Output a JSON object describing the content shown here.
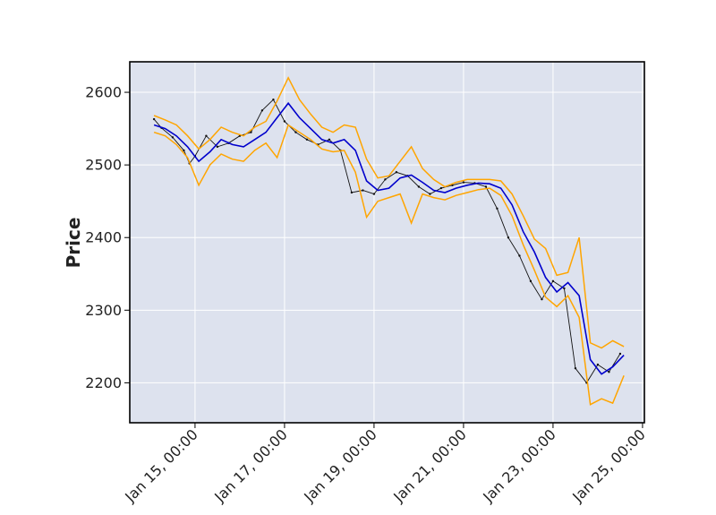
{
  "chart_data": {
    "type": "line",
    "title": "",
    "xlabel": "",
    "ylabel": "Price",
    "y_ticks": [
      2200,
      2300,
      2400,
      2500,
      2600
    ],
    "y_tick_labels": [
      "2200",
      "2300",
      "2400",
      "2500",
      "2600"
    ],
    "ylim": [
      2145,
      2642
    ],
    "x_ticks": [
      "2024-01-15 00:00",
      "2024-01-17 00:00",
      "2024-01-19 00:00",
      "2024-01-21 00:00",
      "2024-01-23 00:00",
      "2024-01-25 00:00"
    ],
    "x_tick_labels": [
      "Jan 15, 00:00",
      "Jan 17, 00:00",
      "Jan 19, 00:00",
      "Jan 21, 00:00",
      "Jan 23, 00:00",
      "Jan 25, 00:00"
    ],
    "xlim": [
      "2024-01-13 13:00",
      "2024-01-25 01:00"
    ],
    "grid": true,
    "legend": "none",
    "colors": {
      "background": "#dde2ee",
      "grid": "#ffffff",
      "price": "#111111",
      "moving_average": "#0000cc",
      "bands": "#ffa500"
    },
    "series": [
      {
        "role": "price",
        "x": [
          "2024-01-14 02:00",
          "2024-01-14 06:00",
          "2024-01-14 12:00",
          "2024-01-14 18:00",
          "2024-01-14 21:00",
          "2024-01-15 00:00",
          "2024-01-15 06:00",
          "2024-01-15 12:00",
          "2024-01-15 18:00",
          "2024-01-16 00:00",
          "2024-01-16 06:00",
          "2024-01-16 12:00",
          "2024-01-16 18:00",
          "2024-01-17 00:00",
          "2024-01-17 06:00",
          "2024-01-17 12:00",
          "2024-01-17 18:00",
          "2024-01-18 00:00",
          "2024-01-18 06:00",
          "2024-01-18 12:00",
          "2024-01-18 18:00",
          "2024-01-19 00:00",
          "2024-01-19 06:00",
          "2024-01-19 12:00",
          "2024-01-19 18:00",
          "2024-01-20 00:00",
          "2024-01-20 06:00",
          "2024-01-20 12:00",
          "2024-01-20 18:00",
          "2024-01-21 00:00",
          "2024-01-21 06:00",
          "2024-01-21 12:00",
          "2024-01-21 18:00",
          "2024-01-22 00:00",
          "2024-01-22 06:00",
          "2024-01-22 12:00",
          "2024-01-22 18:00",
          "2024-01-23 00:00",
          "2024-01-23 06:00",
          "2024-01-23 12:00",
          "2024-01-23 18:00",
          "2024-01-24 00:00",
          "2024-01-24 06:00",
          "2024-01-24 12:00"
        ],
        "y": [
          2563,
          2551,
          2538,
          2520,
          2502,
          2512,
          2540,
          2525,
          2530,
          2540,
          2545,
          2575,
          2590,
          2560,
          2545,
          2535,
          2528,
          2535,
          2520,
          2462,
          2465,
          2460,
          2480,
          2490,
          2485,
          2470,
          2460,
          2468,
          2472,
          2476,
          2475,
          2470,
          2440,
          2400,
          2375,
          2340,
          2315,
          2340,
          2330,
          2220,
          2200,
          2225,
          2215,
          2240
        ]
      },
      {
        "role": "moving_average",
        "x": [
          "2024-01-14 02:00",
          "2024-01-14 08:00",
          "2024-01-14 14:00",
          "2024-01-14 20:00",
          "2024-01-15 02:00",
          "2024-01-15 08:00",
          "2024-01-15 14:00",
          "2024-01-15 20:00",
          "2024-01-16 02:00",
          "2024-01-16 08:00",
          "2024-01-16 14:00",
          "2024-01-16 20:00",
          "2024-01-17 02:00",
          "2024-01-17 08:00",
          "2024-01-17 14:00",
          "2024-01-17 20:00",
          "2024-01-18 02:00",
          "2024-01-18 08:00",
          "2024-01-18 14:00",
          "2024-01-18 20:00",
          "2024-01-19 02:00",
          "2024-01-19 08:00",
          "2024-01-19 14:00",
          "2024-01-19 20:00",
          "2024-01-20 02:00",
          "2024-01-20 08:00",
          "2024-01-20 14:00",
          "2024-01-20 20:00",
          "2024-01-21 02:00",
          "2024-01-21 08:00",
          "2024-01-21 14:00",
          "2024-01-21 20:00",
          "2024-01-22 02:00",
          "2024-01-22 08:00",
          "2024-01-22 14:00",
          "2024-01-22 20:00",
          "2024-01-23 02:00",
          "2024-01-23 08:00",
          "2024-01-23 14:00",
          "2024-01-23 20:00",
          "2024-01-24 02:00",
          "2024-01-24 08:00",
          "2024-01-24 14:00"
        ],
        "y": [
          2555,
          2550,
          2540,
          2525,
          2505,
          2518,
          2535,
          2528,
          2525,
          2535,
          2545,
          2565,
          2585,
          2565,
          2550,
          2535,
          2530,
          2535,
          2520,
          2478,
          2465,
          2468,
          2482,
          2486,
          2476,
          2465,
          2462,
          2468,
          2472,
          2475,
          2474,
          2468,
          2445,
          2408,
          2380,
          2345,
          2325,
          2338,
          2320,
          2232,
          2212,
          2222,
          2238
        ]
      },
      {
        "role": "upper_band",
        "x": [
          "2024-01-14 02:00",
          "2024-01-14 08:00",
          "2024-01-14 14:00",
          "2024-01-14 20:00",
          "2024-01-15 02:00",
          "2024-01-15 08:00",
          "2024-01-15 14:00",
          "2024-01-15 20:00",
          "2024-01-16 02:00",
          "2024-01-16 08:00",
          "2024-01-16 14:00",
          "2024-01-16 20:00",
          "2024-01-17 02:00",
          "2024-01-17 08:00",
          "2024-01-17 14:00",
          "2024-01-17 20:00",
          "2024-01-18 02:00",
          "2024-01-18 08:00",
          "2024-01-18 14:00",
          "2024-01-18 20:00",
          "2024-01-19 02:00",
          "2024-01-19 08:00",
          "2024-01-19 14:00",
          "2024-01-19 20:00",
          "2024-01-20 02:00",
          "2024-01-20 08:00",
          "2024-01-20 14:00",
          "2024-01-20 20:00",
          "2024-01-21 02:00",
          "2024-01-21 08:00",
          "2024-01-21 14:00",
          "2024-01-21 20:00",
          "2024-01-22 02:00",
          "2024-01-22 08:00",
          "2024-01-22 14:00",
          "2024-01-22 20:00",
          "2024-01-23 02:00",
          "2024-01-23 08:00",
          "2024-01-23 14:00",
          "2024-01-23 20:00",
          "2024-01-24 02:00",
          "2024-01-24 08:00",
          "2024-01-24 14:00"
        ],
        "y": [
          2568,
          2562,
          2555,
          2540,
          2522,
          2535,
          2552,
          2545,
          2540,
          2552,
          2560,
          2588,
          2620,
          2590,
          2570,
          2552,
          2545,
          2555,
          2552,
          2508,
          2482,
          2485,
          2505,
          2525,
          2495,
          2480,
          2470,
          2476,
          2480,
          2480,
          2480,
          2478,
          2460,
          2430,
          2398,
          2385,
          2348,
          2352,
          2400,
          2255,
          2248,
          2258,
          2250
        ]
      },
      {
        "role": "lower_band",
        "x": [
          "2024-01-14 02:00",
          "2024-01-14 08:00",
          "2024-01-14 14:00",
          "2024-01-14 20:00",
          "2024-01-15 02:00",
          "2024-01-15 08:00",
          "2024-01-15 14:00",
          "2024-01-15 20:00",
          "2024-01-16 02:00",
          "2024-01-16 08:00",
          "2024-01-16 14:00",
          "2024-01-16 20:00",
          "2024-01-17 02:00",
          "2024-01-17 08:00",
          "2024-01-17 14:00",
          "2024-01-17 20:00",
          "2024-01-18 02:00",
          "2024-01-18 08:00",
          "2024-01-18 14:00",
          "2024-01-18 20:00",
          "2024-01-19 02:00",
          "2024-01-19 08:00",
          "2024-01-19 14:00",
          "2024-01-19 20:00",
          "2024-01-20 02:00",
          "2024-01-20 08:00",
          "2024-01-20 14:00",
          "2024-01-20 20:00",
          "2024-01-21 02:00",
          "2024-01-21 08:00",
          "2024-01-21 14:00",
          "2024-01-21 20:00",
          "2024-01-22 02:00",
          "2024-01-22 08:00",
          "2024-01-22 14:00",
          "2024-01-22 20:00",
          "2024-01-23 02:00",
          "2024-01-23 08:00",
          "2024-01-23 14:00",
          "2024-01-23 20:00",
          "2024-01-24 02:00",
          "2024-01-24 08:00",
          "2024-01-24 14:00"
        ],
        "y": [
          2545,
          2540,
          2528,
          2510,
          2472,
          2500,
          2515,
          2508,
          2505,
          2520,
          2530,
          2510,
          2555,
          2545,
          2535,
          2522,
          2518,
          2520,
          2490,
          2428,
          2450,
          2455,
          2460,
          2420,
          2460,
          2455,
          2452,
          2458,
          2462,
          2466,
          2468,
          2458,
          2430,
          2390,
          2355,
          2318,
          2305,
          2320,
          2290,
          2170,
          2178,
          2172,
          2210
        ]
      }
    ]
  }
}
